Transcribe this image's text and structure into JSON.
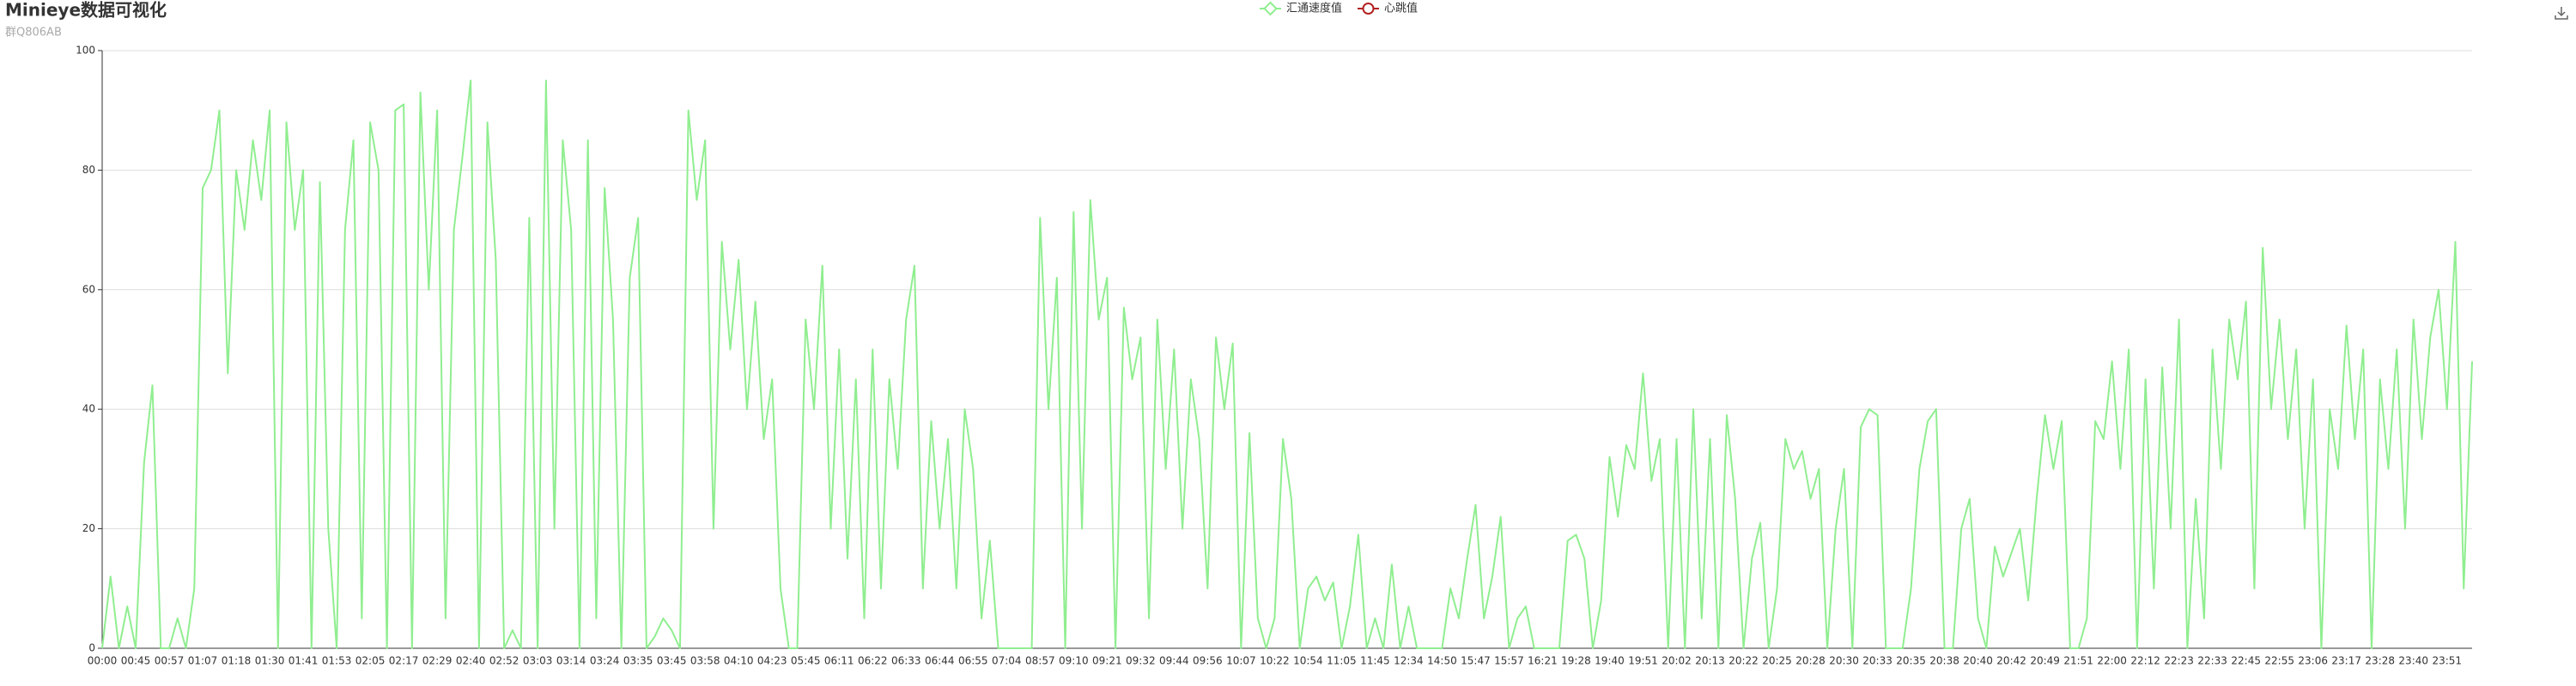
{
  "chart_data": {
    "type": "line",
    "title": "Minieye数据可视化",
    "subtitle": "群Q806AB",
    "categories": [
      "00:00",
      null,
      null,
      null,
      "00:45",
      null,
      null,
      null,
      "00:57",
      null,
      null,
      null,
      "01:07",
      null,
      null,
      null,
      "01:18",
      null,
      null,
      null,
      "01:30",
      null,
      null,
      null,
      "01:41",
      null,
      null,
      null,
      "01:53",
      null,
      null,
      null,
      "02:05",
      null,
      null,
      null,
      "02:17",
      null,
      null,
      null,
      "02:29",
      null,
      null,
      null,
      "02:40",
      null,
      null,
      null,
      "02:52",
      null,
      null,
      null,
      "03:03",
      null,
      null,
      null,
      "03:14",
      null,
      null,
      null,
      "03:24",
      null,
      null,
      null,
      "03:35",
      null,
      null,
      null,
      "03:45",
      null,
      null,
      null,
      "03:58",
      null,
      null,
      null,
      "04:10",
      null,
      null,
      null,
      "04:23",
      null,
      null,
      null,
      "05:45",
      null,
      null,
      null,
      "06:11",
      null,
      null,
      null,
      "06:22",
      null,
      null,
      null,
      "06:33",
      null,
      null,
      null,
      "06:44",
      null,
      null,
      null,
      "06:55",
      null,
      null,
      null,
      "07:04",
      null,
      null,
      null,
      "08:57",
      null,
      null,
      null,
      "09:10",
      null,
      null,
      null,
      "09:21",
      null,
      null,
      null,
      "09:32",
      null,
      null,
      null,
      "09:44",
      null,
      null,
      null,
      "09:56",
      null,
      null,
      null,
      "10:07",
      null,
      null,
      null,
      "10:22",
      null,
      null,
      null,
      "10:54",
      null,
      null,
      null,
      "11:05",
      null,
      null,
      null,
      "11:45",
      null,
      null,
      null,
      "12:34",
      null,
      null,
      null,
      "14:50",
      null,
      null,
      null,
      "15:47",
      null,
      null,
      null,
      "15:57",
      null,
      null,
      null,
      "16:21",
      null,
      null,
      null,
      "19:28",
      null,
      null,
      null,
      "19:40",
      null,
      null,
      null,
      "19:51",
      null,
      null,
      null,
      "20:02",
      null,
      null,
      null,
      "20:13",
      null,
      null,
      null,
      "20:22",
      null,
      null,
      null,
      "20:25",
      null,
      null,
      null,
      "20:28",
      null,
      null,
      null,
      "20:30",
      null,
      null,
      null,
      "20:33",
      null,
      null,
      null,
      "20:35",
      null,
      null,
      null,
      "20:38",
      null,
      null,
      null,
      "20:40",
      null,
      null,
      null,
      "20:42",
      null,
      null,
      null,
      "20:49",
      null,
      null,
      null,
      "21:51",
      null,
      null,
      null,
      "22:00",
      null,
      null,
      null,
      "22:12",
      null,
      null,
      null,
      "22:23",
      null,
      null,
      null,
      "22:33",
      null,
      null,
      null,
      "22:45",
      null,
      null,
      null,
      "22:55",
      null,
      null,
      null,
      "23:06",
      null,
      null,
      null,
      "23:17",
      null,
      null,
      null,
      "23:28",
      null,
      null,
      null,
      "23:40",
      null,
      null,
      null,
      "23:51",
      null,
      null,
      null
    ],
    "series": [
      {
        "name": "汇通速度值",
        "color": "#90ee90",
        "symbol": "diamond",
        "values": [
          0,
          12,
          0,
          7,
          0,
          31,
          44,
          0,
          0,
          5,
          0,
          10,
          77,
          80,
          90,
          46,
          80,
          70,
          85,
          75,
          90,
          0,
          88,
          70,
          80,
          0,
          78,
          20,
          0,
          70,
          85,
          5,
          88,
          80,
          0,
          90,
          91,
          0,
          93,
          60,
          90,
          5,
          70,
          82,
          95,
          0,
          88,
          65,
          0,
          3,
          0,
          72,
          0,
          95,
          20,
          85,
          70,
          0,
          85,
          5,
          77,
          55,
          0,
          62,
          72,
          0,
          2,
          5,
          3,
          0,
          90,
          75,
          85,
          20,
          68,
          50,
          65,
          40,
          58,
          35,
          45,
          10,
          0,
          0,
          55,
          40,
          64,
          20,
          50,
          15,
          45,
          5,
          50,
          10,
          45,
          30,
          55,
          64,
          10,
          38,
          20,
          35,
          10,
          40,
          30,
          5,
          18,
          0,
          0,
          0,
          0,
          0,
          72,
          40,
          62,
          0,
          73,
          20,
          75,
          55,
          62,
          0,
          57,
          45,
          52,
          5,
          55,
          30,
          50,
          20,
          45,
          35,
          10,
          52,
          40,
          51,
          0,
          36,
          5,
          0,
          5,
          35,
          25,
          0,
          10,
          12,
          8,
          11,
          0,
          7,
          19,
          0,
          5,
          0,
          14,
          0,
          7,
          0,
          0,
          0,
          0,
          10,
          5,
          15,
          24,
          5,
          12,
          22,
          0,
          5,
          7,
          0,
          0,
          0,
          0,
          18,
          19,
          15,
          0,
          8,
          32,
          22,
          34,
          30,
          46,
          28,
          35,
          0,
          35,
          0,
          40,
          5,
          35,
          0,
          39,
          25,
          0,
          15,
          21,
          0,
          10,
          35,
          30,
          33,
          25,
          30,
          0,
          20,
          30,
          0,
          37,
          40,
          39,
          0,
          0,
          0,
          10,
          30,
          38,
          40,
          0,
          0,
          20,
          25,
          5,
          0,
          17,
          12,
          16,
          20,
          8,
          25,
          39,
          30,
          38,
          0,
          0,
          5,
          38,
          35,
          48,
          30,
          50,
          0,
          45,
          10,
          47,
          20,
          55,
          0,
          25,
          5,
          50,
          30,
          55,
          45,
          58,
          10,
          67,
          40,
          55,
          35,
          50,
          20,
          45,
          0,
          40,
          30,
          54,
          35,
          50,
          0,
          45,
          30,
          50,
          20,
          55,
          35,
          52,
          60,
          40,
          68,
          10,
          48
        ]
      },
      {
        "name": "心跳值",
        "color": "#b22222",
        "symbol": "circle"
      }
    ],
    "ylim": [
      0,
      100
    ],
    "yticks": [
      0,
      20,
      40,
      60,
      80,
      100
    ],
    "grid": true,
    "legend": "top"
  }
}
